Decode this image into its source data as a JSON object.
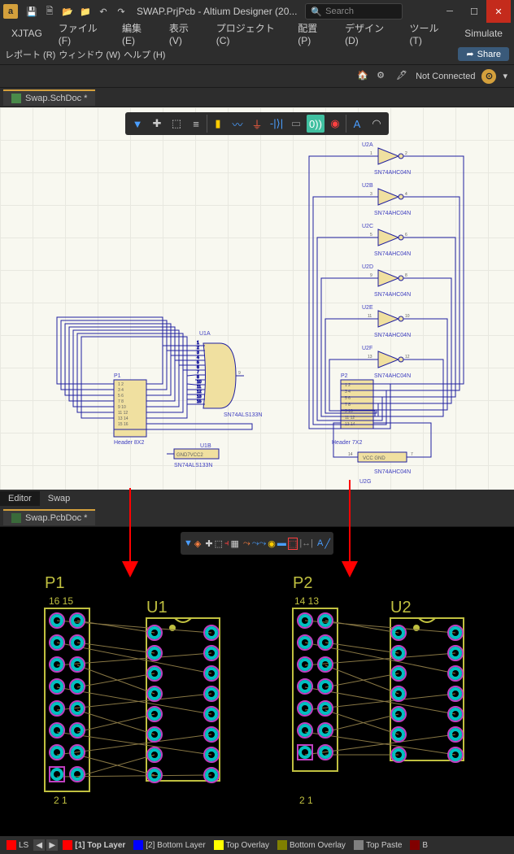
{
  "title": "SWAP.PrjPcb - Altium Designer (20...",
  "search_placeholder": "Search",
  "menu1": [
    "XJTAG",
    "ファイル (F)",
    "編集 (E)",
    "表示 (V)",
    "プロジェクト (C)",
    "配置 (P)",
    "デザイン (D)",
    "ツール (T)",
    "Simulate"
  ],
  "menu2": [
    "レポート (R)",
    "ウィンドウ (W)",
    "ヘルプ (H)"
  ],
  "share_label": "Share",
  "not_connected": "Not Connected",
  "doc_sch": "Swap.SchDoc *",
  "doc_pcb": "Swap.PcbDoc *",
  "btab_editor": "Editor",
  "btab_swap": "Swap",
  "schematic": {
    "colors": {
      "wire": "#2020a0",
      "bg": "#f8f8f0",
      "text": "#4040c0",
      "part": "#c0a030"
    },
    "u1": {
      "label": "U1A",
      "type": "SN74ALS133N",
      "pwr": "U1B",
      "pwr_type": "SN74ALS133N",
      "pwr_pins": "GND7VCC2"
    },
    "u2": {
      "parts": [
        "U2A",
        "U2B",
        "U2C",
        "U2D",
        "U2E",
        "U2F"
      ],
      "type": "SN74AHC04N",
      "pwr": "U2G",
      "pwr_pins": [
        "VCC",
        "GND"
      ],
      "pins": [
        [
          "1",
          "2"
        ],
        [
          "3",
          "4"
        ],
        [
          "5",
          "6"
        ],
        [
          "9",
          "8"
        ],
        [
          "11",
          "10"
        ],
        [
          "13",
          "12"
        ]
      ],
      "pwr_nums": [
        "14",
        "7"
      ]
    },
    "p1": {
      "label": "P1",
      "type": "Header 8X2",
      "pins": 16
    },
    "p2": {
      "label": "P2",
      "type": "Header 7X2",
      "pins": 14
    }
  },
  "pcb": {
    "refs": {
      "p1": "P1",
      "u1": "U1",
      "p2": "P2",
      "u2": "U2",
      "p1n": [
        "16",
        "15",
        "2",
        "1"
      ],
      "p2n": [
        "14",
        "13",
        "2",
        "1"
      ]
    },
    "colors": {
      "silk": "#c0c040",
      "copper": "#00c0c0",
      "outline": "#c040c0",
      "ratsnest": "#887744"
    }
  },
  "layers": [
    {
      "sw": "#ff0000",
      "label": "LS"
    },
    {
      "sw": "#ff0000",
      "label": "[1] Top Layer",
      "bold": true
    },
    {
      "sw": "#0000ff",
      "label": "[2] Bottom Layer"
    },
    {
      "sw": "#ffff00",
      "label": "Top Overlay"
    },
    {
      "sw": "#808000",
      "label": "Bottom Overlay"
    },
    {
      "sw": "#808080",
      "label": "Top Paste"
    },
    {
      "sw": "#800000",
      "label": "B"
    }
  ],
  "arrow_color": "#ff0000"
}
